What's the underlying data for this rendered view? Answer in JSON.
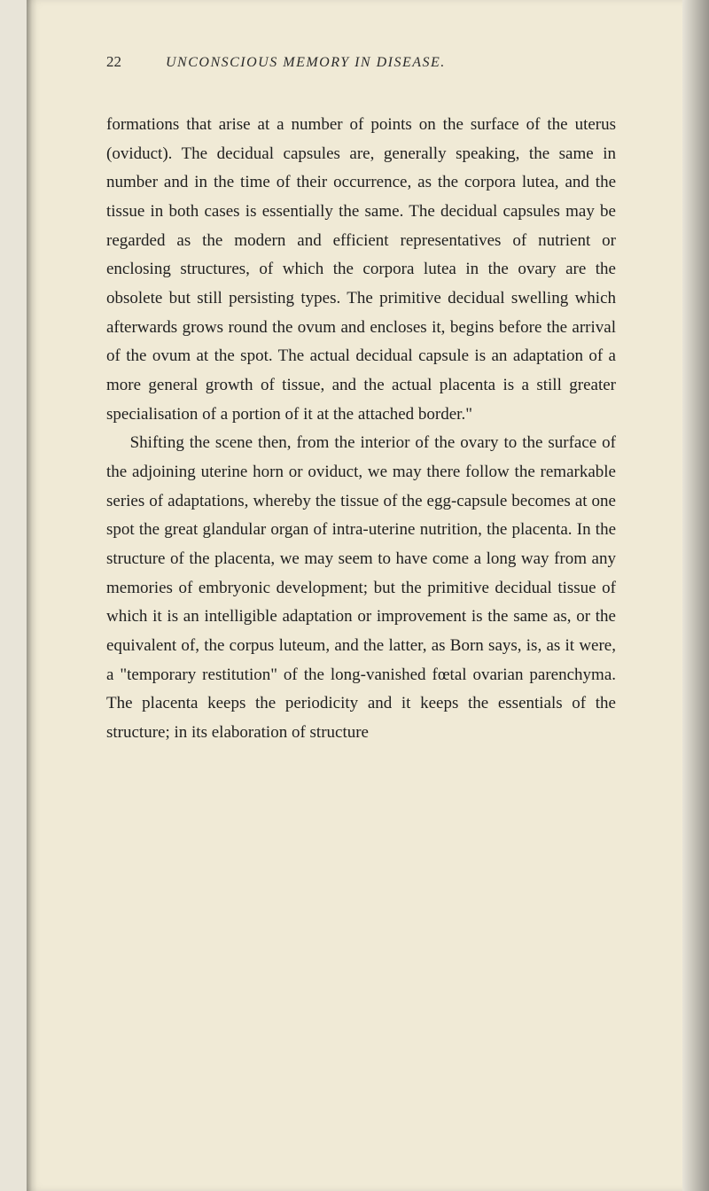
{
  "page": {
    "number": "22",
    "runningTitle": "UNCONSCIOUS MEMORY IN DISEASE.",
    "paragraphs": [
      "formations that arise at a number of points on the surface of the uterus (oviduct). The decidual capsules are, generally speaking, the same in number and in the time of their occurrence, as the corpora lutea, and the tissue in both cases is essentially the same. The decidual capsules may be regarded as the modern and efficient representatives of nutrient or enclosing structures, of which the corpora lutea in the ovary are the obsolete but still persisting types. The primitive decidual swelling which afterwards grows round the ovum and encloses it, begins before the arrival of the ovum at the spot. The actual decidual capsule is an adaptation of a more general growth of tissue, and the actual placenta is a still greater specialisation of a portion of it at the attached border.\"",
      "Shifting the scene then, from the interior of the ovary to the surface of the adjoining uterine horn or oviduct, we may there follow the remarkable series of adaptations, whereby the tissue of the egg-capsule becomes at one spot the great glandular organ of intra-uterine nutrition, the placenta. In the structure of the placenta, we may seem to have come a long way from any memories of embryonic development; but the primitive decidual tissue of which it is an intelligible adaptation or improvement is the same as, or the equivalent of, the corpus luteum, and the latter, as Born says, is, as it were, a \"temporary restitution\" of the long-vanished fœtal ovarian parenchyma. The placenta keeps the periodicity and it keeps the essentials of the structure; in its elaboration of structure"
    ]
  },
  "style": {
    "backgroundColor": "#f0ead6",
    "textColor": "#1f1f1f",
    "bodyFontSize": 19,
    "lineHeight": 1.72
  }
}
